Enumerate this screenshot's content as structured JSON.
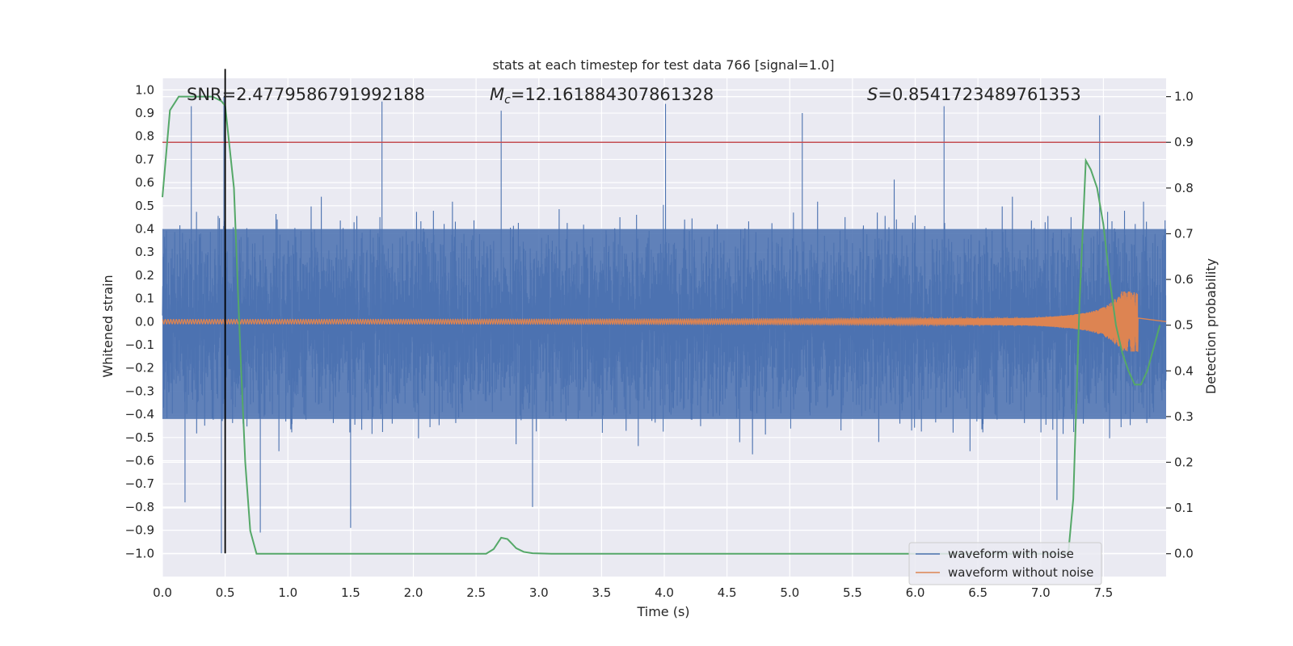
{
  "chart_data": {
    "type": "line",
    "title": "stats at each timestep for test data 766 [signal=1.0]",
    "xlabel": "Time (s)",
    "ylabel": "Whitened strain",
    "y2label": "Detection probability",
    "xlim": [
      0.0,
      8.0
    ],
    "ylim": [
      -1.1,
      1.05
    ],
    "y2lim": [
      -0.05,
      1.04
    ],
    "xticks": [
      0.0,
      0.5,
      1.0,
      1.5,
      2.0,
      2.5,
      3.0,
      3.5,
      4.0,
      4.5,
      5.0,
      5.5,
      6.0,
      6.5,
      7.0,
      7.5
    ],
    "xtick_labels": [
      "0.0",
      "0.5",
      "1.0",
      "1.5",
      "2.0",
      "2.5",
      "3.0",
      "3.5",
      "4.0",
      "4.5",
      "5.0",
      "5.5",
      "6.0",
      "6.5",
      "7.0",
      "7.5"
    ],
    "yticks": [
      -1.0,
      -0.9,
      -0.8,
      -0.7,
      -0.6,
      -0.5,
      -0.4,
      -0.3,
      -0.2,
      -0.1,
      0.0,
      0.1,
      0.2,
      0.3,
      0.4,
      0.5,
      0.6,
      0.7,
      0.8,
      0.9,
      1.0
    ],
    "ytick_labels": [
      "−1.0",
      "−0.9",
      "−0.8",
      "−0.7",
      "−0.6",
      "−0.5",
      "−0.4",
      "−0.3",
      "−0.2",
      "−0.1",
      "0.0",
      "0.1",
      "0.2",
      "0.3",
      "0.4",
      "0.5",
      "0.6",
      "0.7",
      "0.8",
      "0.9",
      "1.0"
    ],
    "y2ticks": [
      0.0,
      0.1,
      0.2,
      0.3,
      0.4,
      0.5,
      0.6,
      0.7,
      0.8,
      0.9,
      1.0
    ],
    "y2tick_labels": [
      "0.0",
      "0.1",
      "0.2",
      "0.3",
      "0.4",
      "0.5",
      "0.6",
      "0.7",
      "0.8",
      "0.9",
      "1.0"
    ],
    "annotations": {
      "snr": "SNR=2.4779586791992188",
      "mc_symbol": "M",
      "mc_sub": "c",
      "mc_value": "=12.161884307861328",
      "s_symbol": "S",
      "s_value": "=0.8541723489761353"
    },
    "threshold_y2": 0.9,
    "marker_x": 0.5,
    "noise_envelope": {
      "description_free": true,
      "dense_pos": 0.4,
      "dense_neg": -0.42,
      "max_pos": 0.97,
      "max_neg": -1.0,
      "spikes": [
        {
          "t": 0.23,
          "v": 0.93
        },
        {
          "t": 0.47,
          "v": -1.0
        },
        {
          "t": 0.49,
          "v": 0.97
        },
        {
          "t": 0.18,
          "v": -0.78
        },
        {
          "t": 0.78,
          "v": -0.91
        },
        {
          "t": 1.5,
          "v": -0.89
        },
        {
          "t": 1.75,
          "v": 0.95
        },
        {
          "t": 2.7,
          "v": 0.91
        },
        {
          "t": 2.95,
          "v": -0.8
        },
        {
          "t": 4.01,
          "v": 0.94
        },
        {
          "t": 5.1,
          "v": 0.9
        },
        {
          "t": 6.23,
          "v": 0.93
        },
        {
          "t": 7.47,
          "v": 0.89
        },
        {
          "t": 7.13,
          "v": -0.77
        }
      ]
    },
    "series": [
      {
        "name": "waveform with noise",
        "color": "#4c72b0",
        "kind": "noise"
      },
      {
        "name": "waveform without noise",
        "color": "#dd8452",
        "kind": "chirp",
        "t_start": 0.0,
        "t_merge": 7.78,
        "peak_amp": 0.13
      },
      {
        "name": "detection probability",
        "color": "#55a868",
        "axis": "right",
        "x": [
          0.0,
          0.06,
          0.13,
          0.25,
          0.4,
          0.47,
          0.5,
          0.57,
          0.62,
          0.66,
          0.7,
          0.75,
          1.0,
          2.0,
          2.5,
          2.58,
          2.64,
          2.7,
          2.75,
          2.82,
          2.88,
          2.95,
          3.1,
          4.0,
          5.0,
          6.0,
          7.0,
          7.22,
          7.26,
          7.31,
          7.36,
          7.4,
          7.45,
          7.5,
          7.55,
          7.6,
          7.65,
          7.7,
          7.75,
          7.8,
          7.85,
          7.9,
          7.95
        ],
        "y": [
          0.78,
          0.97,
          1.0,
          1.0,
          1.0,
          0.99,
          0.98,
          0.8,
          0.45,
          0.2,
          0.05,
          0.0,
          0.0,
          0.0,
          0.0,
          0.0,
          0.01,
          0.035,
          0.032,
          0.012,
          0.004,
          0.001,
          0.0,
          0.0,
          0.0,
          0.0,
          0.0,
          0.0,
          0.12,
          0.55,
          0.86,
          0.84,
          0.8,
          0.72,
          0.6,
          0.5,
          0.44,
          0.4,
          0.37,
          0.37,
          0.4,
          0.45,
          0.5
        ]
      }
    ],
    "legend": {
      "placement": "lower-right",
      "items": [
        "waveform with noise",
        "waveform without noise"
      ]
    },
    "colors": {
      "axes_bg": "#eaeaf2",
      "grid": "#ffffff",
      "noise": "#4c72b0",
      "chirp": "#dd8452",
      "prob": "#55a868",
      "threshold": "#c44e52",
      "marker": "#000000"
    }
  }
}
